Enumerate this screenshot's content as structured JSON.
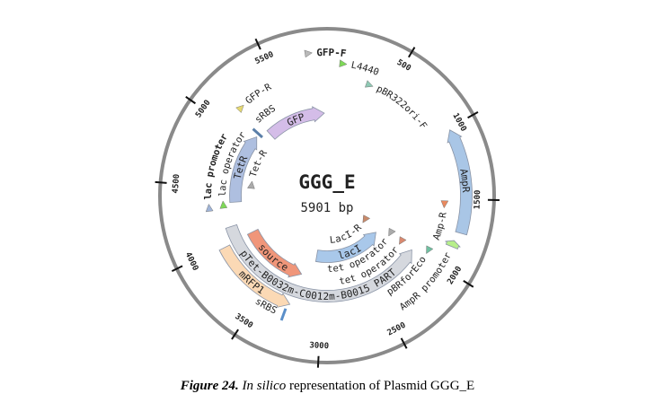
{
  "plasmid": {
    "name": "GGG_E",
    "size_label": "5901 bp",
    "length_bp": 5901,
    "ticks": [
      "500",
      "1000",
      "1500",
      "2000",
      "2500",
      "3000",
      "3500",
      "4000",
      "4500",
      "5000",
      "5500"
    ],
    "backbone_color": "#8a8a8a",
    "features": [
      {
        "name": "GFP-F",
        "type": "primer",
        "start": 5780,
        "color": "#b9b9b9"
      },
      {
        "name": "L4440",
        "type": "primer",
        "start": 115,
        "color": "#7ed957"
      },
      {
        "name": "pBR322ori-F",
        "type": "primer",
        "start": 345,
        "color": "#8fc9b4"
      },
      {
        "name": "AmpR",
        "type": "cds",
        "start": 1013,
        "end": 1733,
        "direction": "reverse",
        "color": "#a9c6e6"
      },
      {
        "name": "Amp-R",
        "type": "primer",
        "start": 1545,
        "color": "#e8895f"
      },
      {
        "name": "AmpR promoter",
        "type": "promoter",
        "start": 1795,
        "end": 1840,
        "direction": "reverse",
        "color": "#b7ef8b"
      },
      {
        "name": "pBRforEco",
        "type": "primer",
        "start": 1943,
        "color": "#6fbfa0"
      },
      {
        "name": "tet operator",
        "type": "operator",
        "start": 1995,
        "color": "#d9896f"
      },
      {
        "name": "tet operator",
        "type": "operator",
        "start": 1975,
        "color": "#aaaaaa"
      },
      {
        "name": "LacI-R",
        "type": "primer",
        "start": 2010,
        "color": "#c98a6a"
      },
      {
        "name": "lacI",
        "type": "cds",
        "start": 2080,
        "end": 3110,
        "direction": "reverse",
        "color": "#a9c8ea"
      },
      {
        "name": "pTet-B0032m-C0012m-B0015 PART",
        "type": "part",
        "start": 2010,
        "end": 4133,
        "direction": "reverse",
        "color": "#d5d8de"
      },
      {
        "name": "source",
        "type": "misc",
        "start": 3245,
        "end": 4000,
        "direction": "reverse",
        "color": "#f0967a"
      },
      {
        "name": "mRFP1",
        "type": "cds",
        "start": 3260,
        "end": 3985,
        "direction": "reverse",
        "color": "#fbd9b5"
      },
      {
        "name": "sRBS",
        "type": "rbs",
        "start": 3280,
        "color": "#5b8fc9"
      },
      {
        "name": "lac promoter",
        "type": "promoter",
        "start": 4330,
        "color": "#9fb4d8"
      },
      {
        "name": "lac operator",
        "type": "operator",
        "start": 4345,
        "color": "#7ed957"
      },
      {
        "name": "Tet-R",
        "type": "primer",
        "start": 4560,
        "color": "#aaaaaa"
      },
      {
        "name": "TetR",
        "type": "cds",
        "start": 4360,
        "end": 5080,
        "direction": "forward",
        "color": "#aebfe0"
      },
      {
        "name": "sRBS",
        "type": "rbs",
        "start": 5115,
        "color": "#5b7fa8"
      },
      {
        "name": "GFP",
        "type": "cds",
        "start": 5200,
        "end": 5870,
        "direction": "forward",
        "color": "#d4bde8"
      },
      {
        "name": "GFP-R",
        "type": "primer",
        "start": 5175,
        "color": "#e5d870"
      }
    ]
  },
  "caption": {
    "figure_label": "Figure 24.",
    "italic": "In silico",
    "text": " representation of Plasmid GGG_E"
  }
}
